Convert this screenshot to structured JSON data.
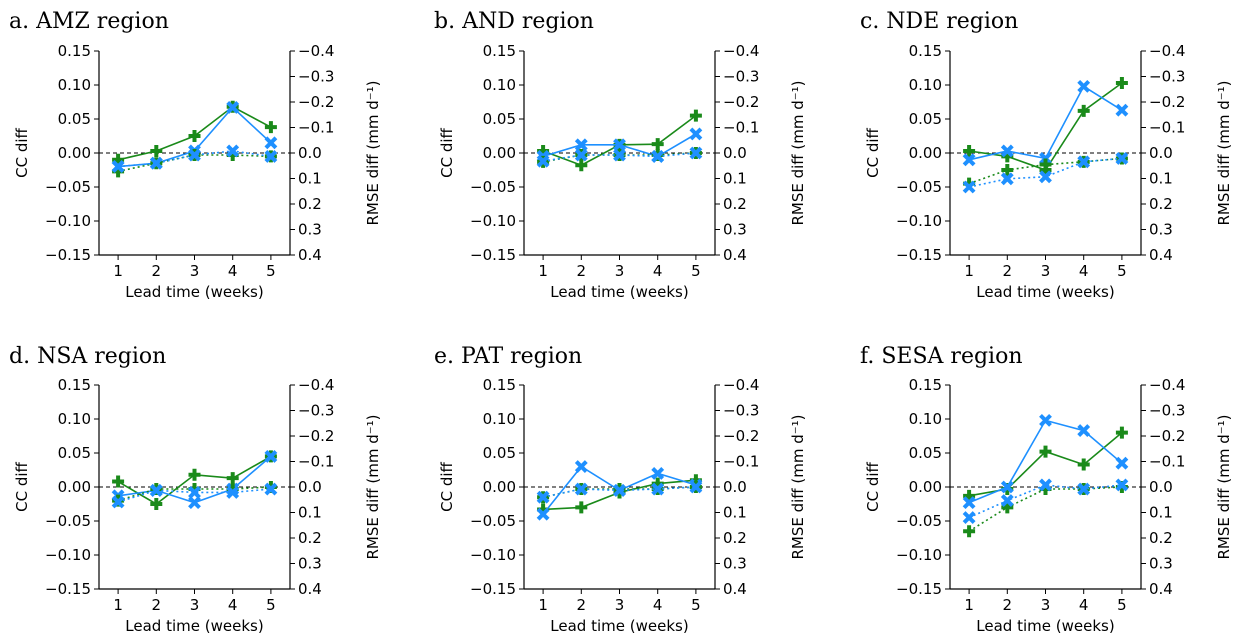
{
  "figure": {
    "xlabel": "Lead time (weeks)",
    "ylabel_left": "CC diff",
    "ylabel_right": "RMSE diff (mm d⁻¹)",
    "left_ticks": [
      "0.15",
      "0.10",
      "0.05",
      "0.00",
      "−0.05",
      "−0.10",
      "−0.15"
    ],
    "right_ticks": [
      "−0.4",
      "−0.3",
      "−0.2",
      "−0.1",
      "0.0",
      "0.1",
      "0.2",
      "0.3",
      "0.4"
    ],
    "x_ticks": [
      "1",
      "2",
      "3",
      "4",
      "5"
    ],
    "colors": {
      "green": "#1a8a1a",
      "blue": "#1e90ff"
    }
  },
  "chart_data": [
    {
      "type": "line",
      "title": "a. AMZ region",
      "x": [
        1,
        2,
        3,
        4,
        5
      ],
      "ylim": [
        -0.15,
        0.15
      ],
      "y2lim": [
        0.4,
        -0.4
      ],
      "series": [
        {
          "color": "#1a8a1a",
          "marker": "plus",
          "style": "solid",
          "values": [
            -0.01,
            0.003,
            0.025,
            0.068,
            0.038
          ]
        },
        {
          "color": "#1e90ff",
          "marker": "x",
          "style": "solid",
          "values": [
            -0.02,
            -0.015,
            0.003,
            0.067,
            0.015
          ]
        },
        {
          "color": "#1a8a1a",
          "marker": "plus",
          "style": "dotted",
          "values": [
            -0.027,
            -0.015,
            -0.003,
            -0.003,
            -0.005
          ]
        },
        {
          "color": "#1e90ff",
          "marker": "x",
          "style": "dotted",
          "values": [
            -0.02,
            -0.015,
            -0.003,
            0.003,
            -0.005
          ]
        }
      ]
    },
    {
      "type": "line",
      "title": "b. AND region",
      "x": [
        1,
        2,
        3,
        4,
        5
      ],
      "ylim": [
        -0.15,
        0.15
      ],
      "y2lim": [
        0.4,
        -0.4
      ],
      "series": [
        {
          "color": "#1a8a1a",
          "marker": "plus",
          "style": "solid",
          "values": [
            0.003,
            -0.018,
            0.012,
            0.013,
            0.055
          ]
        },
        {
          "color": "#1e90ff",
          "marker": "x",
          "style": "solid",
          "values": [
            -0.005,
            0.012,
            0.012,
            -0.005,
            0.028
          ]
        },
        {
          "color": "#1a8a1a",
          "marker": "plus",
          "style": "dotted",
          "values": [
            -0.013,
            -0.003,
            -0.003,
            -0.003,
            0.0
          ]
        },
        {
          "color": "#1e90ff",
          "marker": "x",
          "style": "dotted",
          "values": [
            -0.012,
            -0.003,
            -0.003,
            -0.005,
            0.0
          ]
        }
      ]
    },
    {
      "type": "line",
      "title": "c. NDE region",
      "x": [
        1,
        2,
        3,
        4,
        5
      ],
      "ylim": [
        -0.15,
        0.15
      ],
      "y2lim": [
        0.4,
        -0.4
      ],
      "series": [
        {
          "color": "#1a8a1a",
          "marker": "plus",
          "style": "solid",
          "values": [
            0.003,
            -0.005,
            -0.025,
            0.062,
            0.103
          ]
        },
        {
          "color": "#1e90ff",
          "marker": "x",
          "style": "solid",
          "values": [
            -0.01,
            0.003,
            -0.008,
            0.098,
            0.063
          ]
        },
        {
          "color": "#1a8a1a",
          "marker": "plus",
          "style": "dotted",
          "values": [
            -0.045,
            -0.025,
            -0.017,
            -0.013,
            -0.008
          ]
        },
        {
          "color": "#1e90ff",
          "marker": "x",
          "style": "dotted",
          "values": [
            -0.05,
            -0.038,
            -0.035,
            -0.013,
            -0.008
          ]
        }
      ]
    },
    {
      "type": "line",
      "title": "d. NSA region",
      "x": [
        1,
        2,
        3,
        4,
        5
      ],
      "ylim": [
        -0.15,
        0.15
      ],
      "y2lim": [
        0.4,
        -0.4
      ],
      "series": [
        {
          "color": "#1a8a1a",
          "marker": "plus",
          "style": "solid",
          "values": [
            0.008,
            -0.025,
            0.018,
            0.013,
            0.045
          ]
        },
        {
          "color": "#1e90ff",
          "marker": "x",
          "style": "solid",
          "values": [
            -0.013,
            -0.005,
            -0.023,
            -0.003,
            0.045
          ]
        },
        {
          "color": "#1a8a1a",
          "marker": "plus",
          "style": "dotted",
          "values": [
            -0.02,
            -0.003,
            -0.003,
            -0.003,
            0.0
          ]
        },
        {
          "color": "#1e90ff",
          "marker": "x",
          "style": "dotted",
          "values": [
            -0.022,
            -0.005,
            -0.008,
            -0.008,
            -0.003
          ]
        }
      ]
    },
    {
      "type": "line",
      "title": "e. PAT region",
      "x": [
        1,
        2,
        3,
        4,
        5
      ],
      "ylim": [
        -0.15,
        0.15
      ],
      "y2lim": [
        0.4,
        -0.4
      ],
      "series": [
        {
          "color": "#1a8a1a",
          "marker": "plus",
          "style": "solid",
          "values": [
            -0.033,
            -0.03,
            -0.008,
            0.005,
            0.01
          ]
        },
        {
          "color": "#1e90ff",
          "marker": "x",
          "style": "solid",
          "values": [
            -0.04,
            0.03,
            -0.005,
            0.02,
            0.003
          ]
        },
        {
          "color": "#1a8a1a",
          "marker": "plus",
          "style": "dotted",
          "values": [
            -0.015,
            -0.003,
            -0.003,
            -0.003,
            0.0
          ]
        },
        {
          "color": "#1e90ff",
          "marker": "x",
          "style": "dotted",
          "values": [
            -0.015,
            -0.003,
            -0.005,
            -0.003,
            0.0
          ]
        }
      ]
    },
    {
      "type": "line",
      "title": "f. SESA region",
      "x": [
        1,
        2,
        3,
        4,
        5
      ],
      "ylim": [
        -0.15,
        0.15
      ],
      "y2lim": [
        0.4,
        -0.4
      ],
      "series": [
        {
          "color": "#1a8a1a",
          "marker": "plus",
          "style": "solid",
          "values": [
            -0.013,
            -0.003,
            0.052,
            0.033,
            0.08
          ]
        },
        {
          "color": "#1e90ff",
          "marker": "x",
          "style": "solid",
          "values": [
            -0.023,
            0.0,
            0.098,
            0.083,
            0.035
          ]
        },
        {
          "color": "#1a8a1a",
          "marker": "plus",
          "style": "dotted",
          "values": [
            -0.065,
            -0.03,
            -0.003,
            -0.003,
            0.0
          ]
        },
        {
          "color": "#1e90ff",
          "marker": "x",
          "style": "dotted",
          "values": [
            -0.045,
            -0.02,
            0.003,
            -0.003,
            0.003
          ]
        }
      ]
    }
  ]
}
